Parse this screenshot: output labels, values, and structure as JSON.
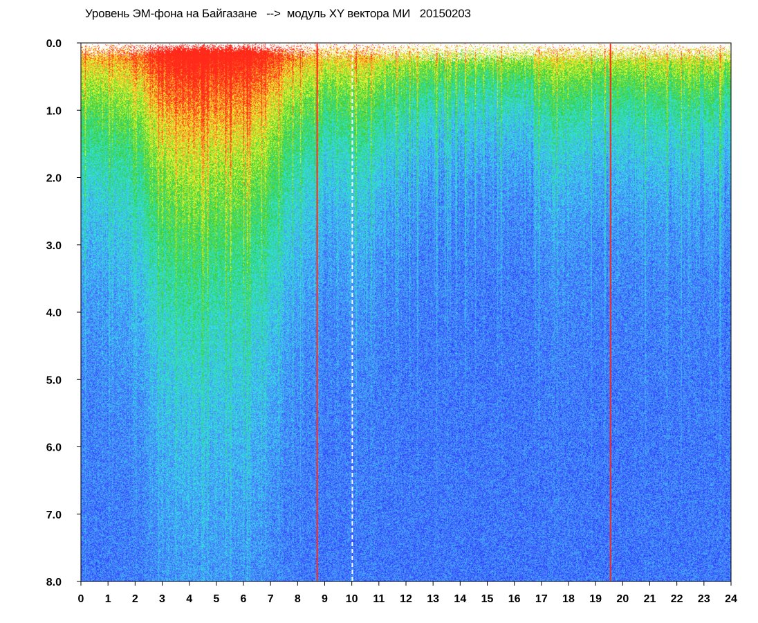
{
  "chart_data": {
    "type": "heatmap",
    "title": "Уровень ЭМ-фона на Байгазане   -->  модуль XY вектора МИ   20150203",
    "x_range": [
      0,
      24
    ],
    "y_range": [
      0,
      8
    ],
    "y_inverted": true,
    "x_ticks": [
      "0",
      "1",
      "2",
      "3",
      "4",
      "5",
      "6",
      "7",
      "8",
      "9",
      "10",
      "11",
      "12",
      "13",
      "14",
      "15",
      "16",
      "17",
      "18",
      "19",
      "20",
      "21",
      "22",
      "23",
      "24"
    ],
    "y_ticks": [
      "0.0",
      "1.0",
      "2.0",
      "3.0",
      "4.0",
      "5.0",
      "6.0",
      "7.0",
      "8.0"
    ],
    "colorscale": [
      "#1a1aff",
      "#4d7fff",
      "#33e6e6",
      "#33cc33",
      "#ffff33",
      "#ff2a1a"
    ],
    "vertical_lines": [
      {
        "x": 8.72,
        "color": "#ff2a1a",
        "style": "solid"
      },
      {
        "x": 10.02,
        "color": "#ffffff",
        "style": "dashed"
      },
      {
        "x": 19.55,
        "color": "#ff2a1a",
        "style": "solid"
      }
    ],
    "intensity_profile": [
      {
        "x": 0.0,
        "level": 0.45
      },
      {
        "x": 2.0,
        "level": 0.55
      },
      {
        "x": 3.0,
        "level": 0.75
      },
      {
        "x": 4.0,
        "level": 0.85
      },
      {
        "x": 5.5,
        "level": 0.8
      },
      {
        "x": 6.5,
        "level": 0.75
      },
      {
        "x": 8.0,
        "level": 0.5
      },
      {
        "x": 9.0,
        "level": 0.4
      },
      {
        "x": 10.5,
        "level": 0.45
      },
      {
        "x": 11.5,
        "level": 0.3
      },
      {
        "x": 14.0,
        "level": 0.25
      },
      {
        "x": 16.0,
        "level": 0.25
      },
      {
        "x": 17.5,
        "level": 0.35
      },
      {
        "x": 19.5,
        "level": 0.3
      },
      {
        "x": 21.0,
        "level": 0.35
      },
      {
        "x": 24.0,
        "level": 0.3
      }
    ]
  }
}
